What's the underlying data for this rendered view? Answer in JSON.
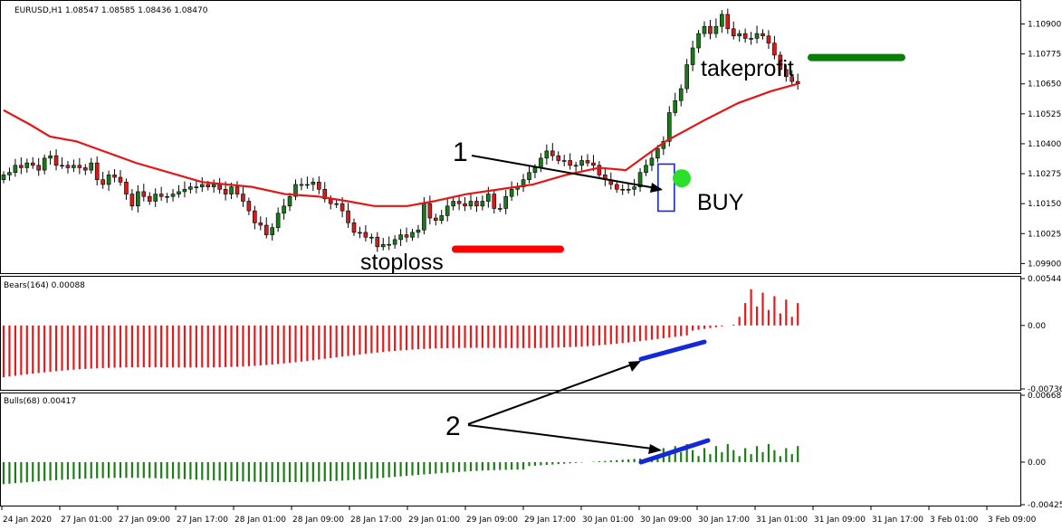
{
  "colors": {
    "up_candle": "#1a7a1a",
    "down_candle": "#d31d1d",
    "ma_line": "#e41616",
    "bears_bar": "#e41b1b",
    "bulls_bar": "#1d7d16",
    "stoploss_line": "#ff0000",
    "takeprofit_line": "#0a7d0a",
    "entry_marker": "#2be02b",
    "entry_box": "#1428d8",
    "trend_lines": "#1428d8"
  },
  "chart_data": [
    {
      "type": "candlestick",
      "title": "EURUSD,H1  1.08547 1.08585 1.08436 1.08470",
      "symbol": "EURUSD,H1",
      "ohlc_header": [
        "1.08547",
        "1.08585",
        "1.08436",
        "1.08470"
      ],
      "x_tick_labels": [
        "24 Jan 2020",
        "27 Jan 01:00",
        "27 Jan 09:00",
        "27 Jan 17:00",
        "28 Jan 01:00",
        "28 Jan 09:00",
        "28 Jan 17:00",
        "29 Jan 01:00",
        "29 Jan 09:00",
        "29 Jan 17:00",
        "30 Jan 01:00",
        "30 Jan 09:00",
        "30 Jan 17:00",
        "31 Jan 01:00",
        "31 Jan 09:00",
        "31 Jan 17:00",
        "3 Feb 01:00",
        "3 Feb 09:00"
      ],
      "y_tick_labels": [
        "1.10900",
        "1.10775",
        "1.10650",
        "1.10525",
        "1.10400",
        "1.10275",
        "1.10150",
        "1.10025",
        "1.09900"
      ],
      "ylim": [
        1.09875,
        1.10985
      ],
      "close_series": [
        1.1027,
        1.1028,
        1.1031,
        1.103,
        1.1032,
        1.1031,
        1.1029,
        1.1034,
        1.1035,
        1.1031,
        1.1031,
        1.103,
        1.1031,
        1.103,
        1.1029,
        1.1032,
        1.1025,
        1.1023,
        1.1027,
        1.1026,
        1.1024,
        1.1019,
        1.1014,
        1.102,
        1.1018,
        1.1016,
        1.1019,
        1.1018,
        1.1018,
        1.1019,
        1.102,
        1.1021,
        1.1022,
        1.1022,
        1.1023,
        1.1022,
        1.1023,
        1.1021,
        1.1019,
        1.1022,
        1.1019,
        1.1016,
        1.1012,
        1.1007,
        1.1006,
        1.1002,
        1.1005,
        1.1011,
        1.1014,
        1.1018,
        1.1023,
        1.1023,
        1.1023,
        1.1024,
        1.1021,
        1.1017,
        1.1015,
        1.1015,
        1.1012,
        1.1007,
        1.1003,
        1.1003,
        1.1001,
        1.1001,
        1.0997,
        1.0998,
        1.0998,
        1.1,
        1.1002,
        1.1001,
        1.1003,
        1.1004,
        1.1015,
        1.1009,
        1.1008,
        1.101,
        1.1014,
        1.1016,
        1.1015,
        1.1014,
        1.1016,
        1.1014,
        1.1016,
        1.1019,
        1.1013,
        1.1013,
        1.1018,
        1.1021,
        1.1022,
        1.1025,
        1.1028,
        1.103,
        1.1034,
        1.1037,
        1.1035,
        1.1033,
        1.1033,
        1.1031,
        1.1031,
        1.1033,
        1.1032,
        1.1031,
        1.1027,
        1.1025,
        1.1023,
        1.1021,
        1.1021,
        1.1021,
        1.1022,
        1.1028,
        1.1031,
        1.1034,
        1.1038,
        1.1041,
        1.1053,
        1.1058,
        1.1063,
        1.1073,
        1.108,
        1.1086,
        1.1089,
        1.1086,
        1.1089,
        1.1094,
        1.1088,
        1.1085,
        1.1086,
        1.1084,
        1.1084,
        1.1086,
        1.1085,
        1.1082,
        1.1077,
        1.1071,
        1.1068,
        1.1066,
        1.1065
      ],
      "moving_average": {
        "start": 1.1054,
        "points": [
          [
            0,
            1.1054
          ],
          [
            8,
            1.1048
          ],
          [
            14,
            1.1043
          ],
          [
            22,
            1.1041
          ],
          [
            30,
            1.1037
          ],
          [
            40,
            1.1032
          ],
          [
            50,
            1.1028
          ],
          [
            60,
            1.1024
          ],
          [
            75,
            1.1022
          ],
          [
            85,
            1.1019
          ],
          [
            95,
            1.1018
          ],
          [
            104,
            1.1016
          ],
          [
            112,
            1.1014
          ],
          [
            122,
            1.1014
          ],
          [
            130,
            1.1016
          ],
          [
            140,
            1.1019
          ],
          [
            150,
            1.1021
          ],
          [
            160,
            1.1023
          ],
          [
            170,
            1.1027
          ],
          [
            180,
            1.103
          ],
          [
            188,
            1.1029
          ],
          [
            192,
            1.1033
          ],
          [
            200,
            1.1041
          ],
          [
            212,
            1.105
          ],
          [
            222,
            1.1057
          ],
          [
            232,
            1.1062
          ],
          [
            240,
            1.1065
          ]
        ]
      },
      "annotations": {
        "takeprofit": "takeprofit",
        "stoploss": "stoploss",
        "signal": "BUY",
        "marker_one": "1",
        "marker_two": "2"
      }
    },
    {
      "type": "bar",
      "title": "Bears(164) 0.00088",
      "y_tick_labels": [
        "0.00544",
        "0.00",
        "-0.00736"
      ],
      "ylim": [
        -0.00736,
        0.00544
      ]
    },
    {
      "type": "bar",
      "title": "Bulls(68) 0.00417",
      "y_tick_labels": [
        "0.00668",
        "0.00",
        "-0.00425"
      ],
      "ylim": [
        -0.00425,
        0.00668
      ]
    }
  ]
}
